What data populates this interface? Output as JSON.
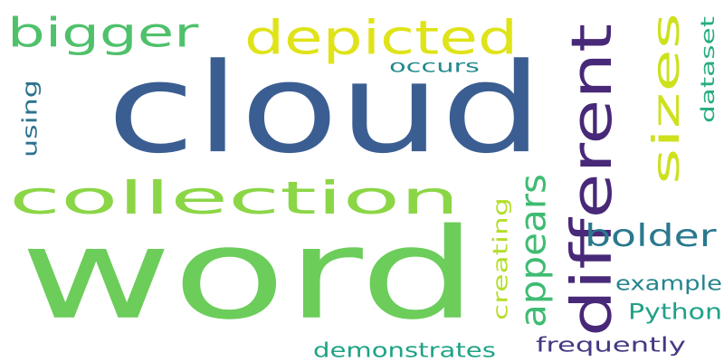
{
  "background_color": "#ffffff",
  "words": [
    {
      "id": "word",
      "text": "word",
      "color": "#6ccd5a",
      "orientation": "horizontal"
    },
    {
      "id": "cloud",
      "text": "cloud",
      "color": "#3b5e92",
      "orientation": "horizontal"
    },
    {
      "id": "collection",
      "text": "collection",
      "color": "#8bd646",
      "orientation": "horizontal"
    },
    {
      "id": "different",
      "text": "different",
      "color": "#482878",
      "orientation": "vertical"
    },
    {
      "id": "depicted",
      "text": "depicted",
      "color": "#dfe318",
      "orientation": "horizontal"
    },
    {
      "id": "bigger",
      "text": "bigger",
      "color": "#4fc16b",
      "orientation": "horizontal"
    },
    {
      "id": "sizes",
      "text": "sizes",
      "color": "#cde11d",
      "orientation": "vertical"
    },
    {
      "id": "appears",
      "text": "appears",
      "color": "#3fbc73",
      "orientation": "vertical"
    },
    {
      "id": "bolder",
      "text": "bolder",
      "color": "#2a788e",
      "orientation": "horizontal"
    },
    {
      "id": "creating",
      "text": "creating",
      "color": "#b5de2b",
      "orientation": "vertical"
    },
    {
      "id": "example",
      "text": "example",
      "color": "#25858e",
      "orientation": "horizontal"
    },
    {
      "id": "python",
      "text": "Python",
      "color": "#1fa187",
      "orientation": "horizontal"
    },
    {
      "id": "frequently",
      "text": "frequently",
      "color": "#443983",
      "orientation": "horizontal"
    },
    {
      "id": "demonstrates",
      "text": "demonstrates",
      "color": "#20a386",
      "orientation": "horizontal"
    },
    {
      "id": "occurs",
      "text": "occurs",
      "color": "#238a8d",
      "orientation": "horizontal"
    },
    {
      "id": "dataset",
      "text": "dataset",
      "color": "#27ad81",
      "orientation": "vertical"
    },
    {
      "id": "using",
      "text": "using",
      "color": "#2c728e",
      "orientation": "vertical"
    }
  ]
}
